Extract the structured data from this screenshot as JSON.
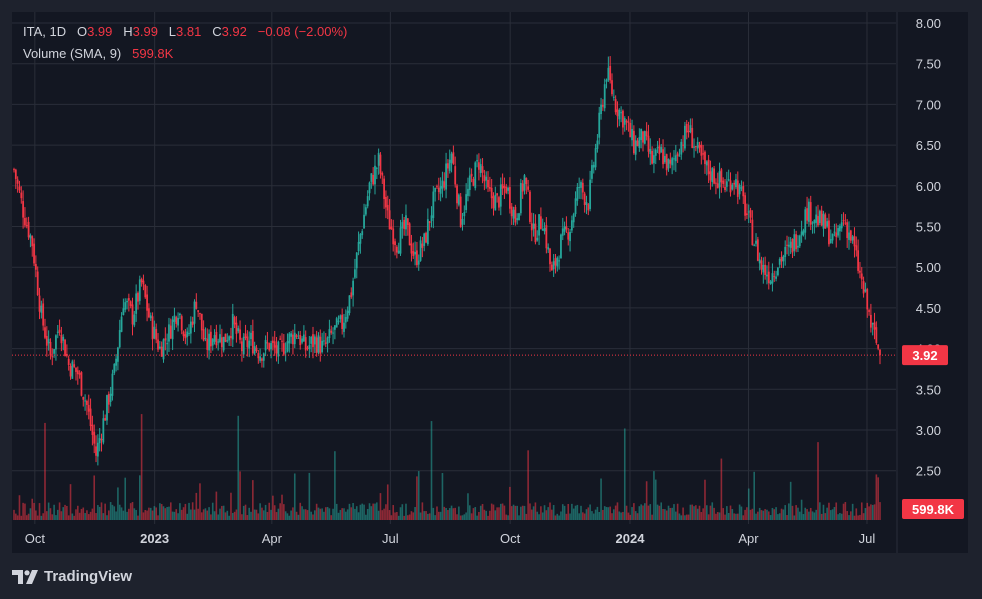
{
  "window": {
    "brand_name": "TradingView",
    "brand_logo": "tv-logo-icon",
    "colors": {
      "background": "#131722",
      "panel": "#1e222d",
      "up": "#26a69a",
      "down": "#f23645",
      "grid": "#2a2e39",
      "text": "#d1d4dc"
    }
  },
  "legend": {
    "symbol": "ITA",
    "interval": "1D",
    "open_label": "O",
    "open": "3.99",
    "high_label": "H",
    "high": "3.99",
    "low_label": "L",
    "low": "3.81",
    "close_label": "C",
    "close": "3.92",
    "change": "−0.08 (−2.00%)",
    "volume_label": "Volume (SMA, 9)",
    "volume_value": "599.8K"
  },
  "chart_data": {
    "type": "candlestick",
    "title": "ITA, 1D",
    "price_axis": {
      "ticks": [
        "8.00",
        "7.50",
        "7.00",
        "6.50",
        "6.00",
        "5.50",
        "5.00",
        "4.50",
        "4.00",
        "3.50",
        "3.00",
        "2.50"
      ],
      "range": [
        2.2,
        8.15
      ]
    },
    "time_axis": {
      "ticks": [
        "Oct",
        "2023",
        "Apr",
        "Jul",
        "Oct",
        "2024",
        "Apr",
        "Jul"
      ]
    },
    "last_price_label": "3.92",
    "volume_label": "599.8K",
    "price_path": [
      {
        "date": "2022-09-15",
        "close": 6.2
      },
      {
        "date": "2022-09-22",
        "close": 5.7
      },
      {
        "date": "2022-09-29",
        "close": 5.3
      },
      {
        "date": "2022-10-06",
        "close": 4.4
      },
      {
        "date": "2022-10-13",
        "close": 3.9
      },
      {
        "date": "2022-10-20",
        "close": 4.3
      },
      {
        "date": "2022-10-27",
        "close": 3.8
      },
      {
        "date": "2022-11-03",
        "close": 3.7
      },
      {
        "date": "2022-11-10",
        "close": 3.3
      },
      {
        "date": "2022-11-17",
        "close": 2.7
      },
      {
        "date": "2022-11-24",
        "close": 3.2
      },
      {
        "date": "2022-12-01",
        "close": 3.7
      },
      {
        "date": "2022-12-08",
        "close": 4.6
      },
      {
        "date": "2022-12-15",
        "close": 4.4
      },
      {
        "date": "2022-12-22",
        "close": 4.8
      },
      {
        "date": "2022-12-29",
        "close": 4.3
      },
      {
        "date": "2023-01-05",
        "close": 4.0
      },
      {
        "date": "2023-01-12",
        "close": 4.2
      },
      {
        "date": "2023-01-19",
        "close": 4.5
      },
      {
        "date": "2023-01-26",
        "close": 4.1
      },
      {
        "date": "2023-02-02",
        "close": 4.6
      },
      {
        "date": "2023-02-09",
        "close": 4.0
      },
      {
        "date": "2023-02-16",
        "close": 4.2
      },
      {
        "date": "2023-02-23",
        "close": 4.1
      },
      {
        "date": "2023-03-02",
        "close": 4.3
      },
      {
        "date": "2023-03-09",
        "close": 4.0
      },
      {
        "date": "2023-03-16",
        "close": 4.1
      },
      {
        "date": "2023-03-23",
        "close": 3.95
      },
      {
        "date": "2023-03-30",
        "close": 4.05
      },
      {
        "date": "2023-04-06",
        "close": 3.95
      },
      {
        "date": "2023-04-13",
        "close": 4.1
      },
      {
        "date": "2023-04-20",
        "close": 4.2
      },
      {
        "date": "2023-04-27",
        "close": 4.0
      },
      {
        "date": "2023-05-04",
        "close": 4.1
      },
      {
        "date": "2023-05-11",
        "close": 4.0
      },
      {
        "date": "2023-05-18",
        "close": 4.2
      },
      {
        "date": "2023-05-25",
        "close": 4.3
      },
      {
        "date": "2023-06-01",
        "close": 4.7
      },
      {
        "date": "2023-06-08",
        "close": 5.4
      },
      {
        "date": "2023-06-15",
        "close": 6.0
      },
      {
        "date": "2023-06-22",
        "close": 6.3
      },
      {
        "date": "2023-06-29",
        "close": 5.6
      },
      {
        "date": "2023-07-06",
        "close": 5.3
      },
      {
        "date": "2023-07-13",
        "close": 5.5
      },
      {
        "date": "2023-07-20",
        "close": 5.1
      },
      {
        "date": "2023-07-27",
        "close": 5.3
      },
      {
        "date": "2023-08-03",
        "close": 5.8
      },
      {
        "date": "2023-08-10",
        "close": 6.0
      },
      {
        "date": "2023-08-17",
        "close": 6.4
      },
      {
        "date": "2023-08-24",
        "close": 5.6
      },
      {
        "date": "2023-08-31",
        "close": 6.0
      },
      {
        "date": "2023-09-07",
        "close": 6.3
      },
      {
        "date": "2023-09-14",
        "close": 5.9
      },
      {
        "date": "2023-09-21",
        "close": 5.8
      },
      {
        "date": "2023-09-28",
        "close": 6.0
      },
      {
        "date": "2023-10-05",
        "close": 5.6
      },
      {
        "date": "2023-10-12",
        "close": 6.1
      },
      {
        "date": "2023-10-19",
        "close": 5.4
      },
      {
        "date": "2023-10-26",
        "close": 5.6
      },
      {
        "date": "2023-11-02",
        "close": 4.9
      },
      {
        "date": "2023-11-09",
        "close": 5.3
      },
      {
        "date": "2023-11-16",
        "close": 5.5
      },
      {
        "date": "2023-11-23",
        "close": 6.0
      },
      {
        "date": "2023-11-30",
        "close": 5.8
      },
      {
        "date": "2023-12-07",
        "close": 6.6
      },
      {
        "date": "2023-12-14",
        "close": 7.4
      },
      {
        "date": "2023-12-21",
        "close": 7.0
      },
      {
        "date": "2023-12-28",
        "close": 6.8
      },
      {
        "date": "2024-01-04",
        "close": 6.5
      },
      {
        "date": "2024-01-11",
        "close": 6.6
      },
      {
        "date": "2024-01-18",
        "close": 6.3
      },
      {
        "date": "2024-01-25",
        "close": 6.4
      },
      {
        "date": "2024-02-01",
        "close": 6.2
      },
      {
        "date": "2024-02-08",
        "close": 6.5
      },
      {
        "date": "2024-02-15",
        "close": 6.7
      },
      {
        "date": "2024-02-22",
        "close": 6.4
      },
      {
        "date": "2024-02-29",
        "close": 6.2
      },
      {
        "date": "2024-03-07",
        "close": 6.1
      },
      {
        "date": "2024-03-14",
        "close": 6.0
      },
      {
        "date": "2024-03-21",
        "close": 6.1
      },
      {
        "date": "2024-03-28",
        "close": 5.8
      },
      {
        "date": "2024-04-04",
        "close": 5.4
      },
      {
        "date": "2024-04-11",
        "close": 5.0
      },
      {
        "date": "2024-04-18",
        "close": 4.9
      },
      {
        "date": "2024-04-25",
        "close": 5.1
      },
      {
        "date": "2024-05-02",
        "close": 5.2
      },
      {
        "date": "2024-05-09",
        "close": 5.4
      },
      {
        "date": "2024-05-16",
        "close": 5.7
      },
      {
        "date": "2024-05-23",
        "close": 5.6
      },
      {
        "date": "2024-05-30",
        "close": 5.5
      },
      {
        "date": "2024-06-06",
        "close": 5.3
      },
      {
        "date": "2024-06-13",
        "close": 5.6
      },
      {
        "date": "2024-06-20",
        "close": 5.3
      },
      {
        "date": "2024-06-27",
        "close": 4.8
      },
      {
        "date": "2024-07-04",
        "close": 4.3
      },
      {
        "date": "2024-07-11",
        "close": 3.92
      }
    ]
  }
}
